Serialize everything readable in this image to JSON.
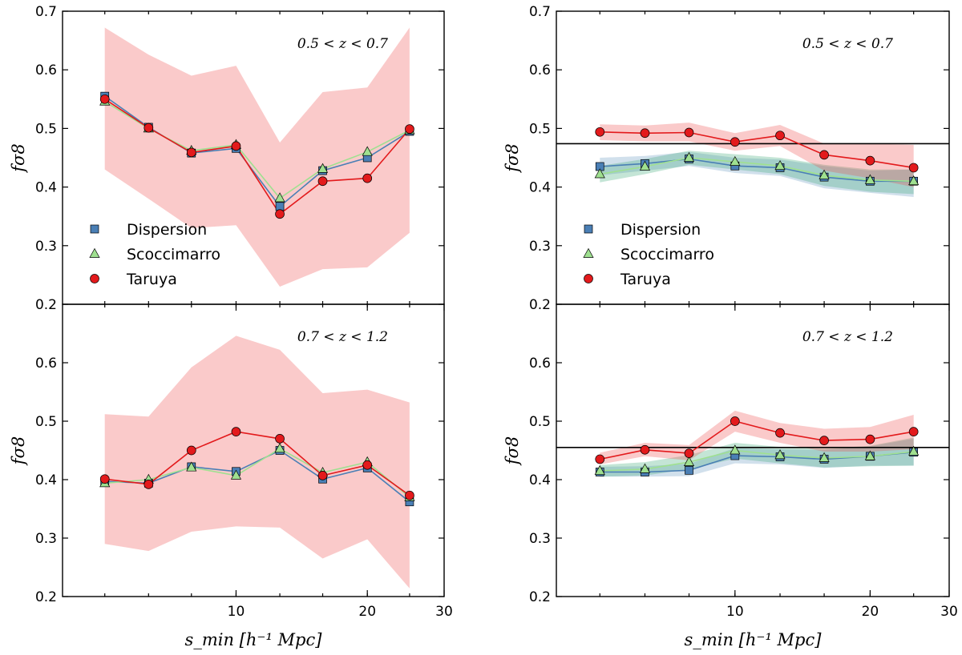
{
  "chart_data": [
    {
      "type": "line",
      "panel": "top-left",
      "annotation": "0.5 < z < 0.7",
      "ylabel": "fσ8",
      "xlabel": "",
      "xscale": "log",
      "xlim": [
        4,
        30
      ],
      "ylim": [
        0.2,
        0.7
      ],
      "yticks": [
        "0.2",
        "0.3",
        "0.4",
        "0.5",
        "0.6",
        "0.7"
      ],
      "xticks": [],
      "legend": {
        "position": "lower-left",
        "entries": [
          "Dispersion",
          "Scoccimarro",
          "Taruya"
        ]
      },
      "reference_line": null,
      "x": [
        5,
        6.3,
        7.9,
        10,
        12.6,
        15.8,
        20,
        25
      ],
      "series": [
        {
          "name": "Dispersion",
          "marker": "square",
          "color": "#4a7fb5",
          "values": [
            0.555,
            0.502,
            0.458,
            0.466,
            0.367,
            0.428,
            0.45,
            0.495
          ]
        },
        {
          "name": "Scoccimarro",
          "marker": "triangle",
          "color": "#9fe090",
          "values": [
            0.546,
            0.5,
            0.462,
            0.472,
            0.381,
            0.431,
            0.46,
            0.497
          ]
        },
        {
          "name": "Taruya",
          "marker": "circle",
          "color": "#e31a1c",
          "values": [
            0.55,
            0.501,
            0.459,
            0.47,
            0.354,
            0.41,
            0.415,
            0.499
          ],
          "band": {
            "lower": [
              0.43,
              0.38,
              0.33,
              0.335,
              0.23,
              0.26,
              0.263,
              0.322
            ],
            "upper": [
              0.672,
              0.626,
              0.59,
              0.607,
              0.476,
              0.562,
              0.57,
              0.672
            ]
          }
        }
      ]
    },
    {
      "type": "line",
      "panel": "top-right",
      "annotation": "0.5 < z < 0.7",
      "ylabel": "fσ8",
      "xlabel": "",
      "xscale": "log",
      "xlim": [
        4,
        30
      ],
      "ylim": [
        0.2,
        0.7
      ],
      "yticks": [
        "0.2",
        "0.3",
        "0.4",
        "0.5",
        "0.6",
        "0.7"
      ],
      "xticks": [],
      "legend": {
        "position": "lower-left",
        "entries": [
          "Dispersion",
          "Scoccimarro",
          "Taruya"
        ]
      },
      "reference_line": 0.474,
      "x": [
        5,
        6.3,
        7.9,
        10,
        12.6,
        15.8,
        20,
        25
      ],
      "series": [
        {
          "name": "Dispersion",
          "marker": "square",
          "color": "#4a7fb5",
          "values": [
            0.435,
            0.44,
            0.448,
            0.436,
            0.433,
            0.417,
            0.41,
            0.41
          ],
          "band": {
            "lower": [
              0.42,
              0.428,
              0.436,
              0.424,
              0.419,
              0.398,
              0.39,
              0.383
            ],
            "upper": [
              0.45,
              0.453,
              0.46,
              0.45,
              0.447,
              0.436,
              0.428,
              0.43
            ]
          }
        },
        {
          "name": "Scoccimarro",
          "marker": "triangle",
          "color": "#9fe090",
          "values": [
            0.422,
            0.435,
            0.45,
            0.443,
            0.436,
            0.42,
            0.412,
            0.41
          ],
          "band": {
            "lower": [
              0.408,
              0.422,
              0.438,
              0.43,
              0.422,
              0.402,
              0.392,
              0.388
            ],
            "upper": [
              0.436,
              0.448,
              0.462,
              0.456,
              0.45,
              0.438,
              0.43,
              0.43
            ]
          }
        },
        {
          "name": "Taruya",
          "marker": "circle",
          "color": "#e31a1c",
          "values": [
            0.494,
            0.492,
            0.493,
            0.477,
            0.488,
            0.455,
            0.445,
            0.433
          ],
          "band": {
            "lower": [
              0.48,
              0.478,
              0.478,
              0.462,
              0.47,
              0.428,
              0.415,
              0.4
            ],
            "upper": [
              0.507,
              0.505,
              0.51,
              0.492,
              0.506,
              0.474,
              0.474,
              0.472
            ]
          }
        }
      ]
    },
    {
      "type": "line",
      "panel": "bottom-left",
      "annotation": "0.7 < z < 1.2",
      "ylabel": "fσ8",
      "xlabel": "s_min [h⁻¹ Mpc]",
      "xscale": "log",
      "xlim": [
        4,
        30
      ],
      "ylim": [
        0.2,
        0.7
      ],
      "yticks": [
        "0.2",
        "0.3",
        "0.4",
        "0.5",
        "0.6"
      ],
      "xticks": [
        "10",
        "20",
        "30"
      ],
      "legend": null,
      "reference_line": null,
      "x": [
        5,
        6.3,
        7.9,
        10,
        12.6,
        15.8,
        20,
        25
      ],
      "series": [
        {
          "name": "Dispersion",
          "marker": "square",
          "color": "#4a7fb5",
          "values": [
            0.397,
            0.394,
            0.422,
            0.414,
            0.45,
            0.401,
            0.42,
            0.362
          ]
        },
        {
          "name": "Scoccimarro",
          "marker": "triangle",
          "color": "#9fe090",
          "values": [
            0.394,
            0.4,
            0.421,
            0.407,
            0.453,
            0.412,
            0.43,
            0.37
          ]
        },
        {
          "name": "Taruya",
          "marker": "circle",
          "color": "#e31a1c",
          "values": [
            0.401,
            0.392,
            0.45,
            0.482,
            0.47,
            0.407,
            0.425,
            0.373
          ],
          "band": {
            "lower": [
              0.29,
              0.278,
              0.311,
              0.32,
              0.318,
              0.265,
              0.298,
              0.214
            ],
            "upper": [
              0.512,
              0.508,
              0.592,
              0.646,
              0.622,
              0.548,
              0.554,
              0.532
            ]
          }
        }
      ]
    },
    {
      "type": "line",
      "panel": "bottom-right",
      "annotation": "0.7 < z < 1.2",
      "ylabel": "fσ8",
      "xlabel": "s_min [h⁻¹ Mpc]",
      "xscale": "log",
      "xlim": [
        4,
        30
      ],
      "ylim": [
        0.2,
        0.7
      ],
      "yticks": [
        "0.2",
        "0.3",
        "0.4",
        "0.5",
        "0.6"
      ],
      "xticks": [
        "10",
        "20",
        "30"
      ],
      "legend": null,
      "reference_line": 0.455,
      "x": [
        5,
        6.3,
        7.9,
        10,
        12.6,
        15.8,
        20,
        25
      ],
      "series": [
        {
          "name": "Dispersion",
          "marker": "square",
          "color": "#4a7fb5",
          "values": [
            0.413,
            0.413,
            0.416,
            0.441,
            0.439,
            0.435,
            0.44,
            0.447
          ],
          "band": {
            "lower": [
              0.405,
              0.405,
              0.406,
              0.428,
              0.426,
              0.42,
              0.424,
              0.424
            ],
            "upper": [
              0.422,
              0.423,
              0.427,
              0.454,
              0.452,
              0.451,
              0.457,
              0.47
            ]
          }
        },
        {
          "name": "Scoccimarro",
          "marker": "triangle",
          "color": "#9fe090",
          "values": [
            0.415,
            0.418,
            0.43,
            0.45,
            0.442,
            0.437,
            0.44,
            0.448
          ],
          "band": {
            "lower": [
              0.405,
              0.407,
              0.418,
              0.436,
              0.428,
              0.421,
              0.423,
              0.424
            ],
            "upper": [
              0.425,
              0.43,
              0.442,
              0.463,
              0.456,
              0.453,
              0.458,
              0.472
            ]
          }
        },
        {
          "name": "Taruya",
          "marker": "circle",
          "color": "#e31a1c",
          "values": [
            0.435,
            0.451,
            0.445,
            0.5,
            0.48,
            0.467,
            0.469,
            0.482
          ],
          "band": {
            "lower": [
              0.426,
              0.44,
              0.433,
              0.482,
              0.463,
              0.448,
              0.448,
              0.452
            ],
            "upper": [
              0.446,
              0.463,
              0.459,
              0.518,
              0.497,
              0.487,
              0.49,
              0.511
            ]
          }
        }
      ]
    }
  ]
}
